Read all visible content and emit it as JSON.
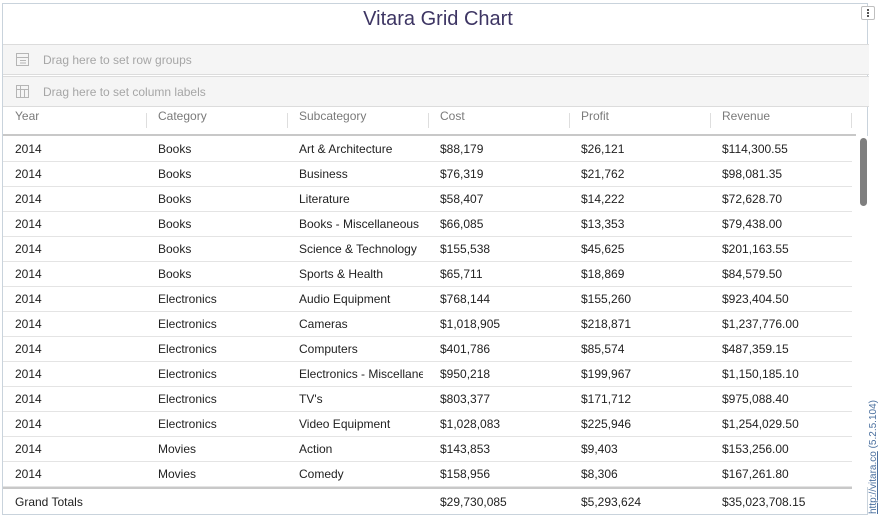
{
  "title": "Vitara Grid Chart",
  "row_groups_placeholder": "Drag here to set row groups",
  "column_labels_placeholder": "Drag here to set column labels",
  "columns": [
    "Year",
    "Category",
    "Subcategory",
    "Cost",
    "Profit",
    "Revenue"
  ],
  "rows": [
    [
      "2014",
      "Books",
      "Art & Architecture",
      "$88,179",
      "$26,121",
      "$114,300.55"
    ],
    [
      "2014",
      "Books",
      "Business",
      "$76,319",
      "$21,762",
      "$98,081.35"
    ],
    [
      "2014",
      "Books",
      "Literature",
      "$58,407",
      "$14,222",
      "$72,628.70"
    ],
    [
      "2014",
      "Books",
      "Books - Miscellaneous",
      "$66,085",
      "$13,353",
      "$79,438.00"
    ],
    [
      "2014",
      "Books",
      "Science & Technology",
      "$155,538",
      "$45,625",
      "$201,163.55"
    ],
    [
      "2014",
      "Books",
      "Sports & Health",
      "$65,711",
      "$18,869",
      "$84,579.50"
    ],
    [
      "2014",
      "Electronics",
      "Audio Equipment",
      "$768,144",
      "$155,260",
      "$923,404.50"
    ],
    [
      "2014",
      "Electronics",
      "Cameras",
      "$1,018,905",
      "$218,871",
      "$1,237,776.00"
    ],
    [
      "2014",
      "Electronics",
      "Computers",
      "$401,786",
      "$85,574",
      "$487,359.15"
    ],
    [
      "2014",
      "Electronics",
      "Electronics - Miscellaneous",
      "$950,218",
      "$199,967",
      "$1,150,185.10"
    ],
    [
      "2014",
      "Electronics",
      "TV's",
      "$803,377",
      "$171,712",
      "$975,088.40"
    ],
    [
      "2014",
      "Electronics",
      "Video Equipment",
      "$1,028,083",
      "$225,946",
      "$1,254,029.50"
    ],
    [
      "2014",
      "Movies",
      "Action",
      "$143,853",
      "$9,403",
      "$153,256.00"
    ],
    [
      "2014",
      "Movies",
      "Comedy",
      "$158,956",
      "$8,306",
      "$167,261.80"
    ]
  ],
  "totals": {
    "label": "Grand Totals",
    "cost": "$29,730,085",
    "profit": "$5,293,624",
    "revenue": "$35,023,708.15"
  },
  "watermark": {
    "link": "http://vitara.co",
    "version": "(5.2.5.104)"
  },
  "icons": {
    "menu": "vertical-dots-icon",
    "row_groups": "row-groups-icon",
    "column_labels": "column-labels-icon"
  }
}
